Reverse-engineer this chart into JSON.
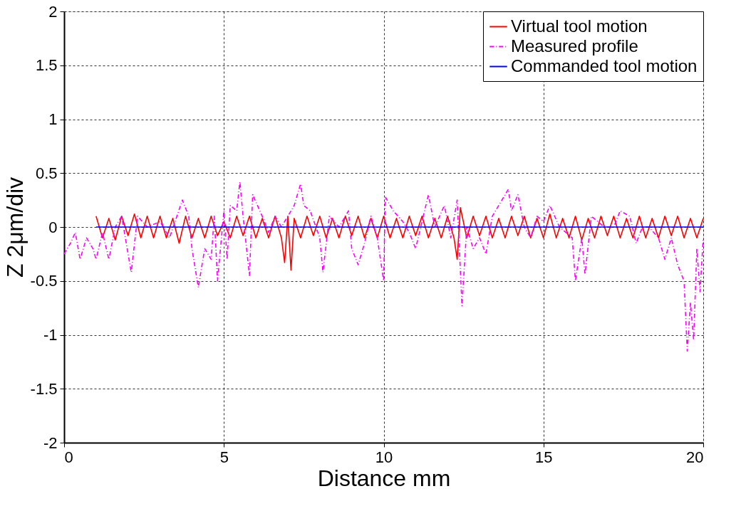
{
  "chart_data": {
    "type": "line",
    "xlabel": "Distance mm",
    "ylabel": "Z  2μm/div",
    "xlim": [
      0,
      20
    ],
    "ylim": [
      -2,
      2
    ],
    "xticks": [
      0,
      5,
      10,
      15,
      20
    ],
    "yticks": [
      -2,
      -1.5,
      -1,
      -0.5,
      0,
      0.5,
      1,
      1.5,
      2
    ],
    "grid": true,
    "legend": "top right",
    "series": [
      {
        "name": "Virtual tool motion",
        "color": "#ff0000",
        "line_style": "solid",
        "x": [
          1.0,
          1.2,
          1.4,
          1.6,
          1.8,
          2.0,
          2.2,
          2.4,
          2.6,
          2.8,
          3.0,
          3.2,
          3.4,
          3.6,
          3.8,
          4.0,
          4.2,
          4.4,
          4.6,
          4.8,
          5.0,
          5.2,
          5.4,
          5.6,
          5.8,
          6.0,
          6.2,
          6.4,
          6.6,
          6.8,
          6.9,
          7.0,
          7.1,
          7.2,
          7.4,
          7.6,
          7.8,
          8.0,
          8.2,
          8.4,
          8.6,
          8.8,
          9.0,
          9.2,
          9.4,
          9.6,
          9.8,
          10.0,
          10.2,
          10.4,
          10.6,
          10.8,
          11.0,
          11.2,
          11.4,
          11.6,
          11.8,
          12.0,
          12.2,
          12.3,
          12.4,
          12.6,
          12.8,
          13.0,
          13.2,
          13.4,
          13.6,
          13.8,
          14.0,
          14.2,
          14.4,
          14.6,
          14.8,
          15.0,
          15.2,
          15.4,
          15.6,
          15.8,
          16.0,
          16.2,
          16.4,
          16.6,
          16.8,
          17.0,
          17.2,
          17.4,
          17.6,
          17.8,
          18.0,
          18.2,
          18.4,
          18.6,
          18.8,
          19.0,
          19.2,
          19.4,
          19.6,
          19.8,
          20.0
        ],
        "values": [
          0.1,
          -0.1,
          0.08,
          -0.12,
          0.1,
          -0.08,
          0.12,
          -0.1,
          0.1,
          -0.1,
          0.1,
          -0.1,
          0.08,
          -0.15,
          0.1,
          -0.1,
          0.08,
          -0.1,
          0.1,
          -0.08,
          0.05,
          -0.1,
          0.1,
          -0.08,
          0.1,
          -0.1,
          0.08,
          -0.1,
          0.1,
          -0.1,
          -0.33,
          0.1,
          -0.4,
          0.08,
          -0.1,
          0.1,
          -0.08,
          0.1,
          -0.1,
          0.08,
          -0.1,
          0.1,
          -0.08,
          0.1,
          -0.1,
          0.08,
          -0.1,
          0.1,
          -0.1,
          0.08,
          -0.1,
          0.1,
          -0.08,
          0.1,
          -0.1,
          0.08,
          -0.1,
          0.1,
          -0.1,
          -0.3,
          0.18,
          -0.1,
          0.1,
          -0.08,
          0.1,
          -0.1,
          0.08,
          -0.1,
          0.1,
          -0.08,
          0.1,
          -0.1,
          0.08,
          -0.1,
          0.12,
          -0.1,
          0.08,
          -0.1,
          0.1,
          -0.12,
          0.08,
          -0.1,
          0.1,
          -0.08,
          0.1,
          -0.1,
          0.08,
          -0.1,
          0.1,
          -0.1,
          0.08,
          -0.1,
          0.1,
          -0.08,
          0.1,
          -0.1,
          0.08,
          -0.1,
          0.08
        ]
      },
      {
        "name": "Measured profile",
        "color": "#ff00ff",
        "line_style": "dashdot",
        "x": [
          0,
          0.2,
          0.35,
          0.5,
          0.7,
          0.9,
          1.0,
          1.2,
          1.4,
          1.6,
          1.8,
          2.1,
          2.3,
          2.6,
          3.0,
          3.3,
          3.7,
          3.9,
          4.0,
          4.2,
          4.4,
          4.6,
          4.7,
          4.8,
          5.0,
          5.1,
          5.2,
          5.4,
          5.5,
          5.6,
          5.8,
          5.9,
          6.2,
          6.4,
          6.6,
          6.8,
          7.0,
          7.2,
          7.4,
          7.5,
          7.7,
          8.0,
          8.1,
          8.3,
          8.6,
          8.9,
          9.0,
          9.2,
          9.4,
          9.6,
          9.8,
          10.0,
          10.05,
          10.3,
          10.6,
          10.8,
          11.0,
          11.4,
          11.6,
          11.9,
          12.1,
          12.3,
          12.45,
          12.6,
          12.8,
          13.0,
          13.2,
          13.4,
          13.6,
          13.9,
          14.0,
          14.2,
          14.4,
          14.6,
          14.8,
          15.0,
          15.2,
          15.5,
          15.9,
          16.0,
          16.2,
          16.3,
          16.5,
          16.9,
          17.2,
          17.4,
          17.7,
          17.9,
          18.1,
          18.3,
          18.6,
          18.8,
          19.0,
          19.2,
          19.4,
          19.5,
          19.6,
          19.7,
          19.8,
          19.9,
          20.0
        ],
        "values": [
          -0.25,
          -0.15,
          -0.05,
          -0.3,
          -0.1,
          -0.2,
          -0.3,
          -0.05,
          -0.3,
          0.0,
          0.1,
          -0.42,
          0.1,
          0.0,
          0.05,
          -0.1,
          0.25,
          0.1,
          -0.2,
          -0.56,
          -0.2,
          -0.3,
          0.1,
          -0.5,
          0.15,
          -0.3,
          0.2,
          0.15,
          0.42,
          0.1,
          -0.45,
          0.3,
          0.1,
          -0.05,
          0.1,
          0.0,
          0.1,
          0.2,
          0.4,
          0.2,
          0.15,
          -0.1,
          -0.42,
          0.1,
          0.0,
          0.15,
          -0.2,
          -0.35,
          -0.15,
          0.1,
          -0.1,
          -0.5,
          0.28,
          0.15,
          0.05,
          -0.05,
          -0.2,
          0.3,
          0.0,
          0.2,
          -0.1,
          0.25,
          -0.73,
          0.0,
          -0.2,
          -0.1,
          -0.25,
          0.1,
          0.2,
          0.35,
          0.15,
          0.3,
          0.0,
          -0.1,
          0.1,
          0.05,
          0.2,
          0.0,
          -0.1,
          -0.5,
          -0.1,
          -0.44,
          0.1,
          0.0,
          0.0,
          0.15,
          0.1,
          -0.15,
          0.0,
          0.0,
          -0.1,
          -0.3,
          -0.1,
          -0.35,
          -0.5,
          -1.15,
          -0.7,
          -1.05,
          -0.2,
          -0.6,
          -0.1
        ]
      },
      {
        "name": "Commanded tool motion",
        "color": "#0000ff",
        "line_style": "solid",
        "x": [
          1.0,
          20.0
        ],
        "values": [
          0,
          0
        ]
      }
    ]
  }
}
